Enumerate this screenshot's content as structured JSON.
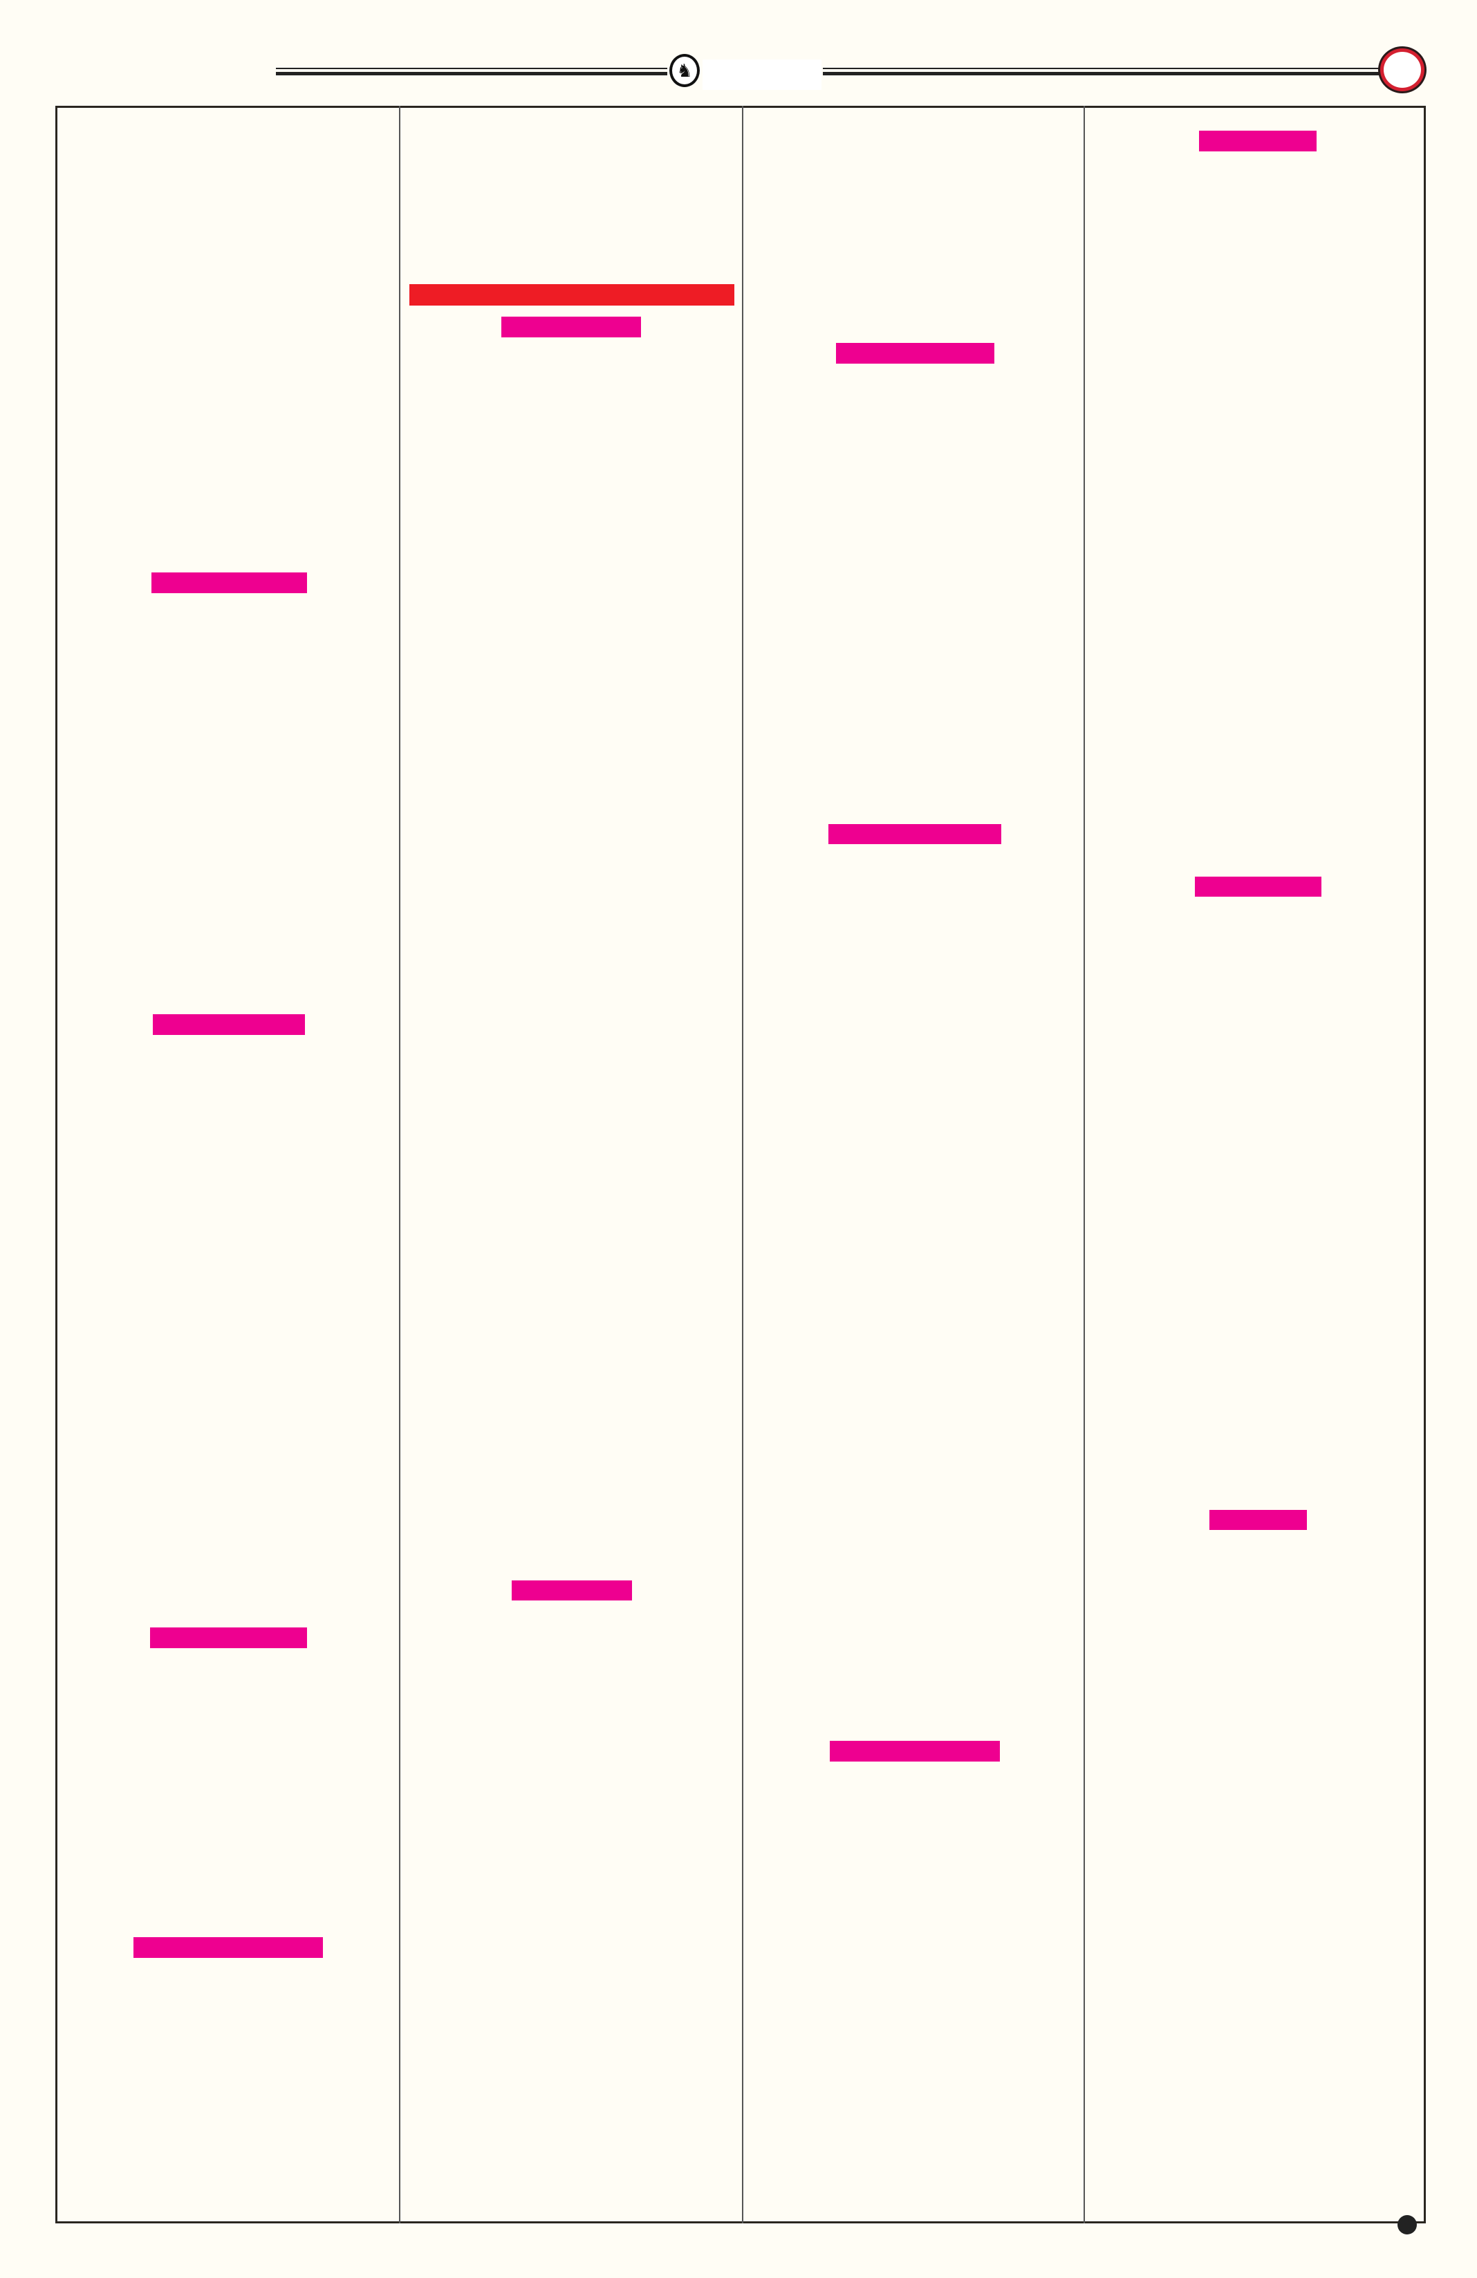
{
  "colors": {
    "background": "#fffdf5",
    "redaction_primary": "#ee0090",
    "redaction_heading": "#ee1c25",
    "page_marker": "#d42030"
  },
  "header": {
    "logo_icon": "horse-emblem-icon",
    "page_marker_icon": "circle-icon"
  },
  "columns": [
    {
      "redactions": [
        "pink",
        "pink",
        "pink",
        "pink"
      ]
    },
    {
      "redactions": [
        "red",
        "pink",
        "pink"
      ]
    },
    {
      "redactions": [
        "pink",
        "pink",
        "pink"
      ]
    },
    {
      "redactions": [
        "pink",
        "pink",
        "pink"
      ]
    }
  ],
  "footer": {
    "marker_icon": "dot-icon"
  }
}
